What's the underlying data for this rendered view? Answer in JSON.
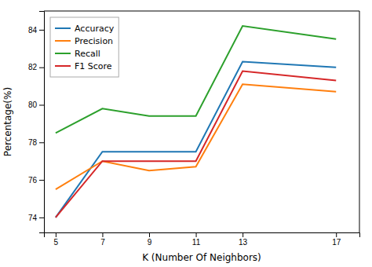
{
  "chart_data": {
    "type": "line",
    "x_label": "K (Number Of Neighbors)",
    "y_label": "Percentage(%)",
    "x": [
      5,
      7,
      9,
      11,
      13,
      17
    ],
    "series": [
      {
        "name": "Accuracy",
        "values": [
          74.0,
          77.5,
          77.5,
          77.5,
          82.3,
          82.0
        ]
      },
      {
        "name": "Precision",
        "values": [
          75.5,
          77.0,
          76.5,
          76.7,
          81.1,
          80.7
        ]
      },
      {
        "name": "Recall",
        "values": [
          78.5,
          79.8,
          79.4,
          79.4,
          84.2,
          83.5
        ]
      },
      {
        "name": "F1 Score",
        "values": [
          74.0,
          77.0,
          77.0,
          77.0,
          81.8,
          81.3
        ]
      }
    ],
    "xlim": [
      4.5,
      18.0
    ],
    "ylim": [
      73.2,
      85.0
    ],
    "xticks": [
      5,
      7,
      9,
      11,
      13,
      17
    ],
    "yticks": [
      74,
      76,
      78,
      80,
      82,
      84
    ],
    "grid": false,
    "legend": "upper-left"
  }
}
